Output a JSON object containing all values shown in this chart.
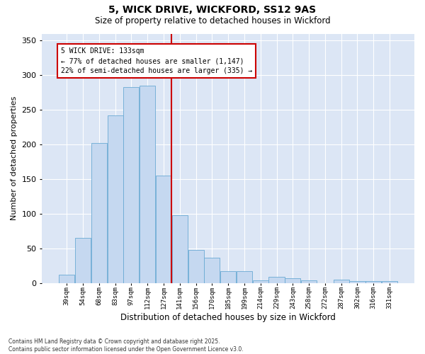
{
  "title1": "5, WICK DRIVE, WICKFORD, SS12 9AS",
  "title2": "Size of property relative to detached houses in Wickford",
  "xlabel": "Distribution of detached houses by size in Wickford",
  "ylabel": "Number of detached properties",
  "categories": [
    "39sqm",
    "54sqm",
    "68sqm",
    "83sqm",
    "97sqm",
    "112sqm",
    "127sqm",
    "141sqm",
    "156sqm",
    "170sqm",
    "185sqm",
    "199sqm",
    "214sqm",
    "229sqm",
    "243sqm",
    "258sqm",
    "272sqm",
    "287sqm",
    "302sqm",
    "316sqm",
    "331sqm"
  ],
  "values": [
    12,
    65,
    202,
    242,
    283,
    285,
    155,
    98,
    48,
    37,
    17,
    17,
    4,
    9,
    7,
    4,
    0,
    5,
    3,
    3,
    3
  ],
  "bar_color": "#c5d8f0",
  "bar_edge_color": "#6aaad4",
  "vline_color": "#cc0000",
  "vline_x_index": 7,
  "annotation_text": "5 WICK DRIVE: 133sqm\n← 77% of detached houses are smaller (1,147)\n22% of semi-detached houses are larger (335) →",
  "annotation_box_facecolor": "#ffffff",
  "annotation_box_edgecolor": "#cc0000",
  "ylim": [
    0,
    360
  ],
  "yticks": [
    0,
    50,
    100,
    150,
    200,
    250,
    300,
    350
  ],
  "plot_bg_color": "#dce6f5",
  "fig_bg_color": "#ffffff",
  "grid_color": "#ffffff",
  "footer1": "Contains HM Land Registry data © Crown copyright and database right 2025.",
  "footer2": "Contains public sector information licensed under the Open Government Licence v3.0."
}
